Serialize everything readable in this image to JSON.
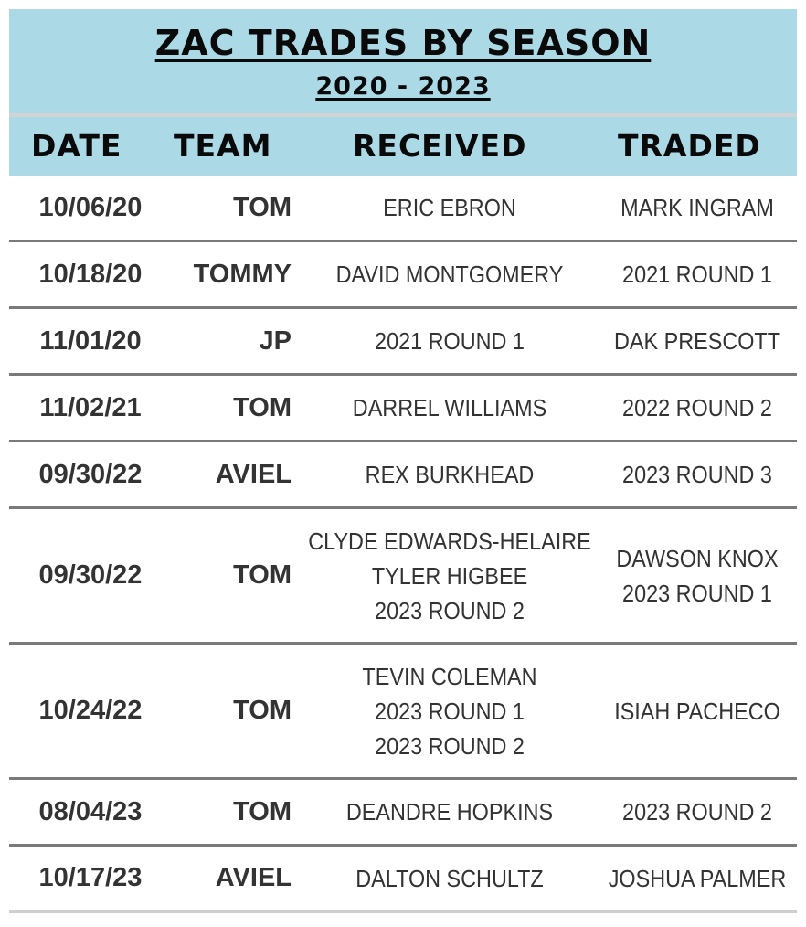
{
  "title": "ZAC TRADES BY SEASON",
  "subtitle": "2020 - 2023",
  "columns": {
    "date": "DATE",
    "team": "TEAM",
    "received": "RECEIVED",
    "traded": "TRADED"
  },
  "colors": {
    "header_bg": "#abd9e6",
    "text": "#333333",
    "row_divider": "#7a7a7a"
  },
  "rows": [
    {
      "date": "10/06/20",
      "team": "TOM",
      "received": [
        "ERIC EBRON"
      ],
      "traded": [
        "MARK INGRAM"
      ]
    },
    {
      "date": "10/18/20",
      "team": "TOMMY",
      "received": [
        "DAVID MONTGOMERY"
      ],
      "traded": [
        "2021 ROUND 1"
      ]
    },
    {
      "date": "11/01/20",
      "team": "JP",
      "received": [
        "2021 ROUND 1"
      ],
      "traded": [
        "DAK PRESCOTT"
      ]
    },
    {
      "date": "11/02/21",
      "team": "TOM",
      "received": [
        "DARREL WILLIAMS"
      ],
      "traded": [
        "2022 ROUND 2"
      ]
    },
    {
      "date": "09/30/22",
      "team": "AVIEL",
      "received": [
        "REX BURKHEAD"
      ],
      "traded": [
        "2023 ROUND 3"
      ]
    },
    {
      "date": "09/30/22",
      "team": "TOM",
      "received": [
        "CLYDE EDWARDS-HELAIRE",
        "TYLER HIGBEE",
        "2023 ROUND 2"
      ],
      "traded": [
        "DAWSON KNOX",
        "2023 ROUND 1"
      ]
    },
    {
      "date": "10/24/22",
      "team": "TOM",
      "received": [
        "TEVIN COLEMAN",
        "2023 ROUND 1",
        "2023 ROUND 2"
      ],
      "traded": [
        "ISIAH PACHECO"
      ]
    },
    {
      "date": "08/04/23",
      "team": "TOM",
      "received": [
        "DEANDRE HOPKINS"
      ],
      "traded": [
        "2023 ROUND 2"
      ]
    },
    {
      "date": "10/17/23",
      "team": "AVIEL",
      "received": [
        "DALTON SCHULTZ"
      ],
      "traded": [
        "JOSHUA PALMER"
      ]
    }
  ]
}
